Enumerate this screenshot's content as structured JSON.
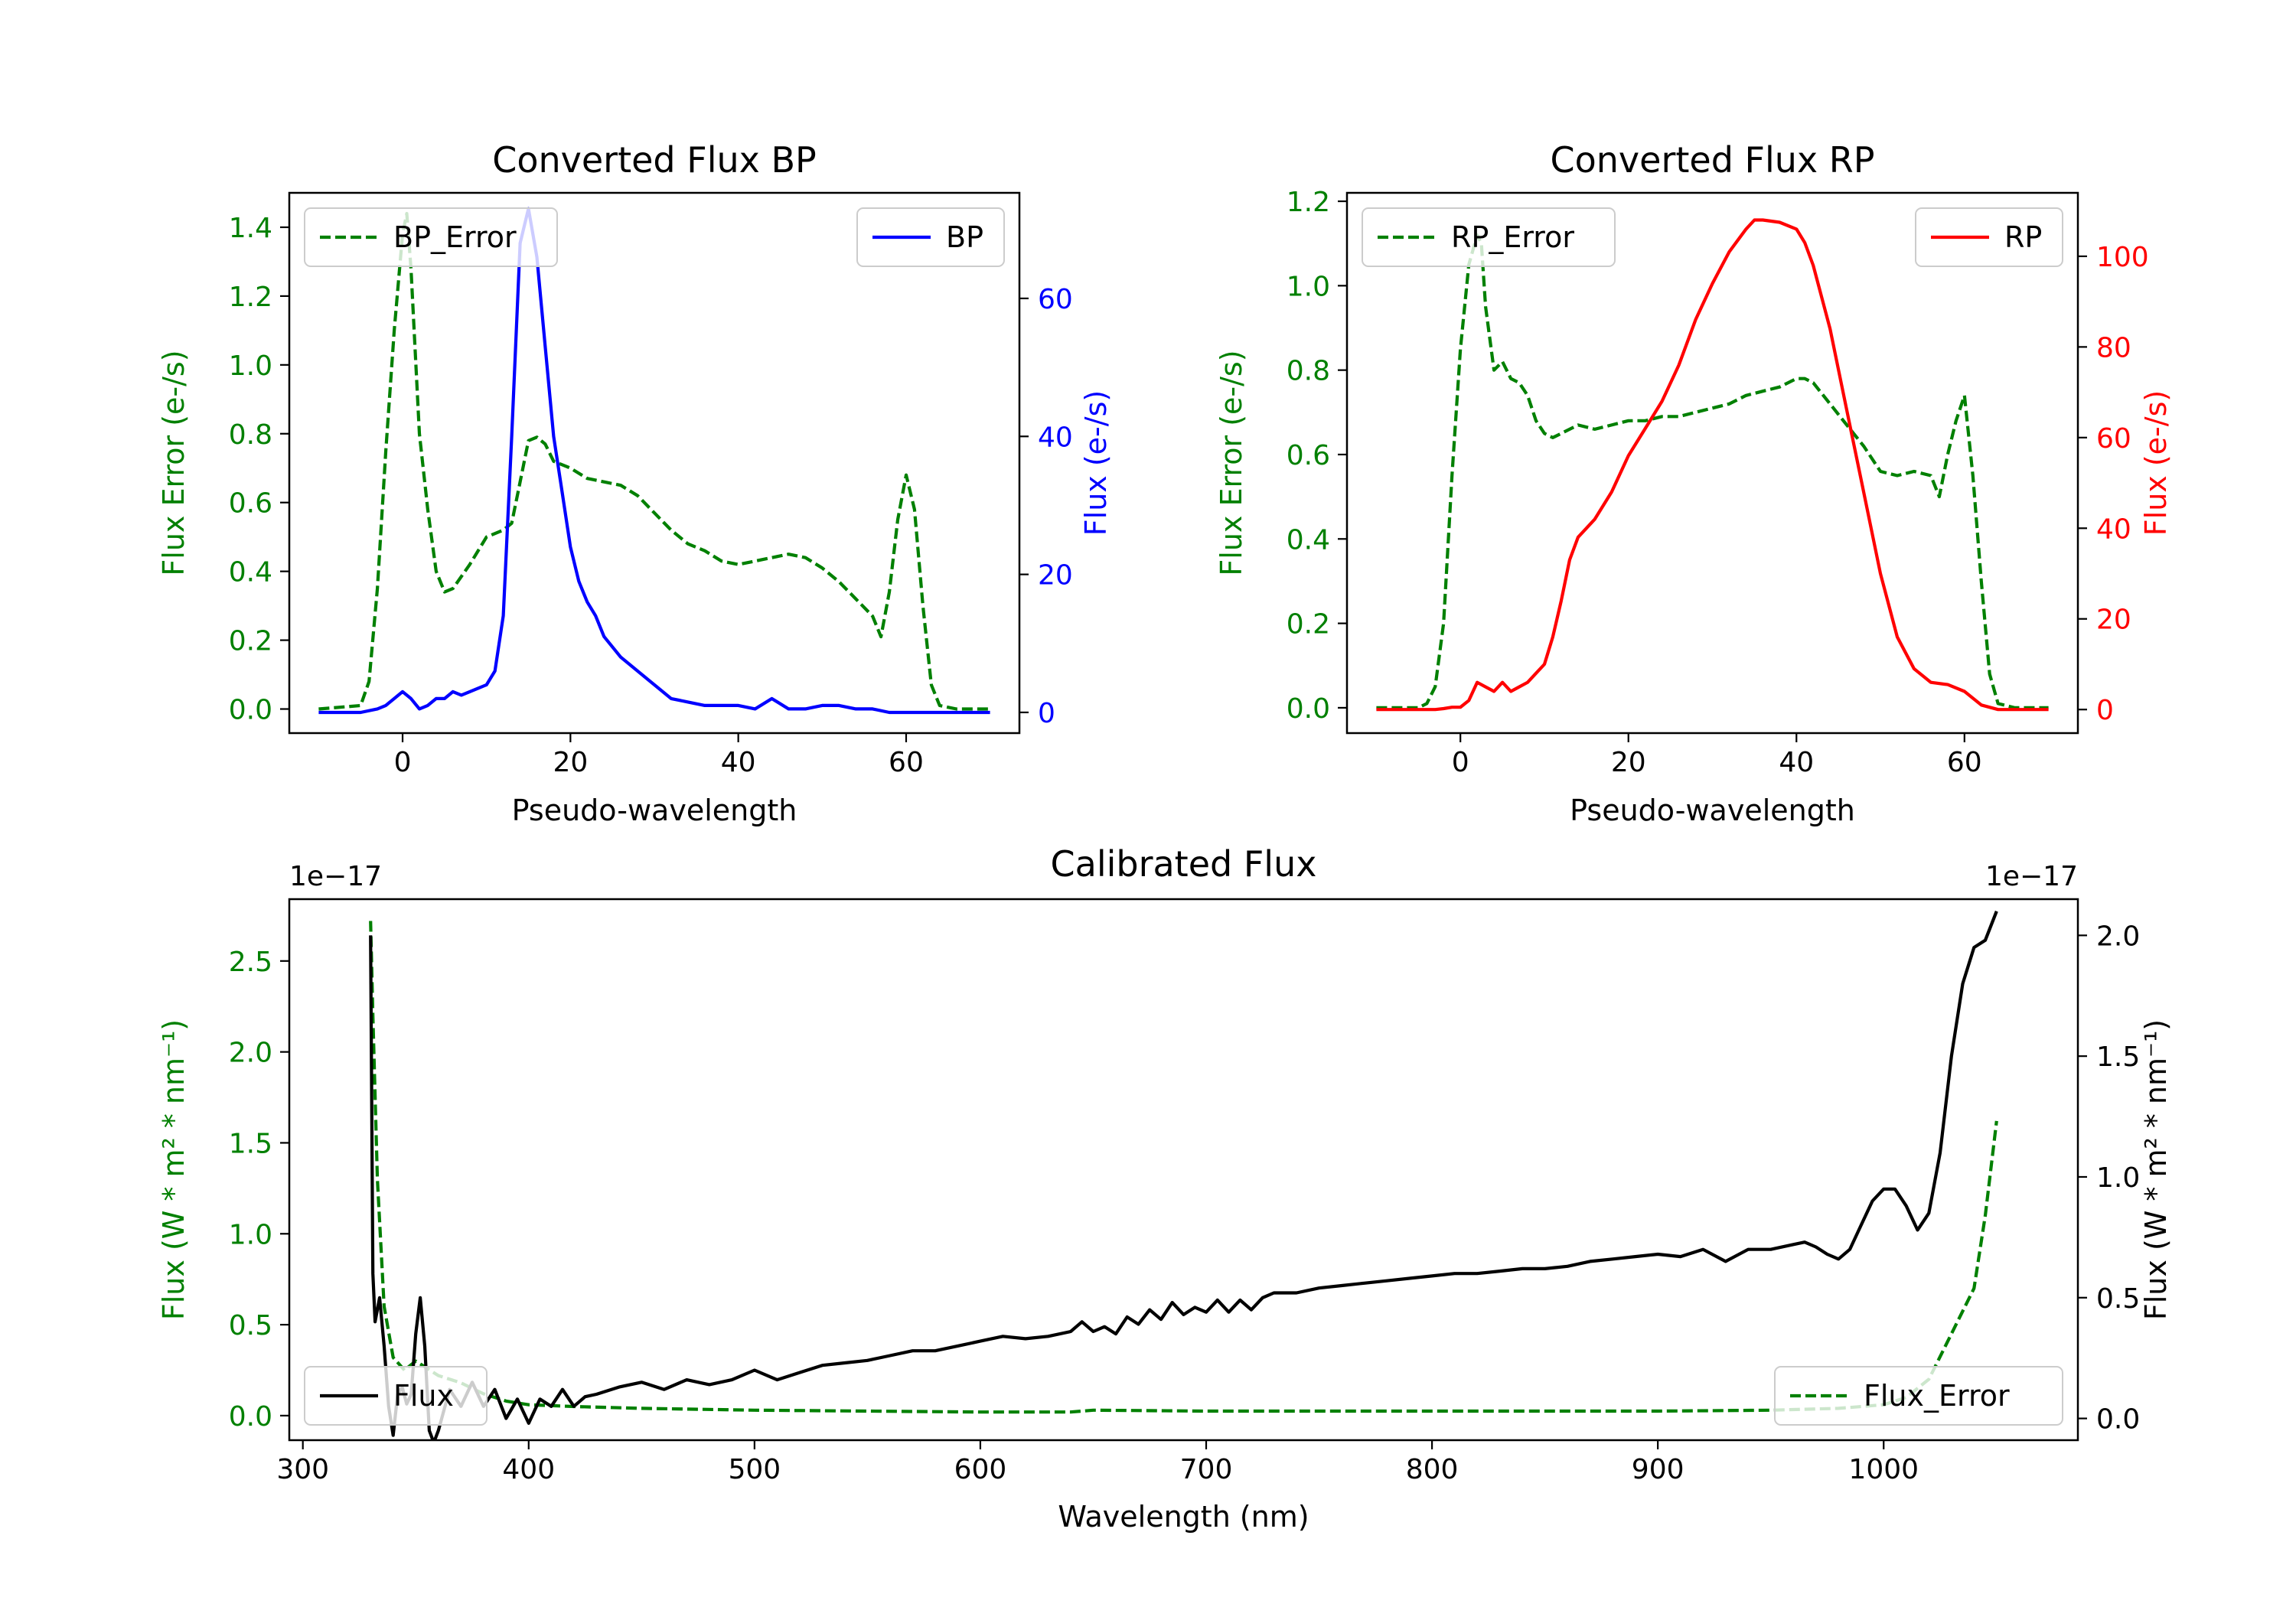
{
  "colors": {
    "green": "#008000",
    "blue": "#0000ff",
    "red": "#ff0000",
    "black": "#000000"
  },
  "chart_data": [
    {
      "id": "bp",
      "type": "line",
      "title": "Converted Flux BP",
      "xlabel": "Pseudo-wavelength",
      "xlim": [
        -13.5,
        73.5
      ],
      "xticks": [
        0,
        20,
        40,
        60
      ],
      "left_axis": {
        "label": "Flux Error (e-/s)",
        "color": "#008000",
        "ylim": [
          -0.07,
          1.5
        ],
        "ticks": [
          0.0,
          0.2,
          0.4,
          0.6,
          0.8,
          1.0,
          1.2,
          1.4
        ],
        "tick_labels": [
          "0.0",
          "0.2",
          "0.4",
          "0.6",
          "0.8",
          "1.0",
          "1.2",
          "1.4"
        ]
      },
      "right_axis": {
        "label": "Flux (e-/s)",
        "color": "#0000ff",
        "ylim": [
          -3.0,
          75.3
        ],
        "ticks": [
          0,
          20,
          40,
          60
        ],
        "tick_labels": [
          "0",
          "20",
          "40",
          "60"
        ]
      },
      "series": [
        {
          "name": "BP_Error",
          "axis": "left",
          "style": "dashed",
          "color": "#008000",
          "legend": "top-left",
          "x": [
            -10,
            -5,
            -4,
            -3,
            -2,
            -1,
            0,
            0.5,
            1,
            2,
            3,
            4,
            5,
            6,
            8,
            10,
            12,
            13,
            14,
            15,
            16,
            17,
            18,
            20,
            22,
            24,
            26,
            28,
            30,
            32,
            34,
            36,
            38,
            40,
            42,
            44,
            46,
            48,
            50,
            52,
            54,
            56,
            57,
            58,
            59,
            60,
            61,
            62,
            63,
            64,
            66,
            68,
            70
          ],
          "y": [
            0.0,
            0.01,
            0.08,
            0.35,
            0.75,
            1.1,
            1.38,
            1.44,
            1.28,
            0.8,
            0.58,
            0.4,
            0.34,
            0.35,
            0.42,
            0.5,
            0.52,
            0.54,
            0.66,
            0.78,
            0.79,
            0.77,
            0.72,
            0.7,
            0.67,
            0.66,
            0.65,
            0.62,
            0.57,
            0.52,
            0.48,
            0.46,
            0.43,
            0.42,
            0.43,
            0.44,
            0.45,
            0.44,
            0.41,
            0.37,
            0.32,
            0.27,
            0.21,
            0.34,
            0.55,
            0.68,
            0.58,
            0.3,
            0.07,
            0.01,
            0.0,
            0.0,
            0.0
          ]
        },
        {
          "name": "BP",
          "axis": "right",
          "style": "solid",
          "color": "#0000ff",
          "legend": "top-right",
          "x": [
            -10,
            -5,
            -3,
            -2,
            -1,
            0,
            1,
            2,
            3,
            4,
            5,
            6,
            7,
            8,
            9,
            10,
            11,
            12,
            13,
            14,
            15,
            16,
            17,
            18,
            19,
            20,
            21,
            22,
            23,
            24,
            26,
            28,
            30,
            32,
            34,
            36,
            38,
            40,
            42,
            44,
            46,
            48,
            50,
            52,
            54,
            56,
            58,
            60,
            62,
            64,
            66,
            68,
            70
          ],
          "y": [
            0,
            0,
            0.5,
            1,
            2,
            3,
            2,
            0.5,
            1,
            2,
            2,
            3,
            2.5,
            3,
            3.5,
            4,
            6,
            14,
            40,
            68,
            73,
            66,
            53,
            40,
            32,
            24,
            19,
            16,
            14,
            11,
            8,
            6,
            4,
            2,
            1.5,
            1,
            1,
            1,
            0.5,
            2,
            0.5,
            0.5,
            1,
            1,
            0.5,
            0.5,
            0,
            0,
            0,
            0,
            0,
            0,
            0
          ]
        }
      ]
    },
    {
      "id": "rp",
      "type": "line",
      "title": "Converted Flux RP",
      "xlabel": "Pseudo-wavelength",
      "xlim": [
        -13.5,
        73.5
      ],
      "xticks": [
        0,
        20,
        40,
        60
      ],
      "left_axis": {
        "label": "Flux Error (e-/s)",
        "color": "#008000",
        "ylim": [
          -0.06,
          1.22
        ],
        "ticks": [
          0.0,
          0.2,
          0.4,
          0.6,
          0.8,
          1.0,
          1.2
        ],
        "tick_labels": [
          "0.0",
          "0.2",
          "0.4",
          "0.6",
          "0.8",
          "1.0",
          "1.2"
        ]
      },
      "right_axis": {
        "label": "Flux (e-/s)",
        "color": "#ff0000",
        "ylim": [
          -5.2,
          114
        ],
        "ticks": [
          0,
          20,
          40,
          60,
          80,
          100
        ],
        "tick_labels": [
          "0",
          "20",
          "40",
          "60",
          "80",
          "100"
        ]
      },
      "series": [
        {
          "name": "RP_Error",
          "axis": "left",
          "style": "dashed",
          "color": "#008000",
          "legend": "top-left",
          "x": [
            -10,
            -5,
            -4,
            -3,
            -2,
            -1,
            0,
            1,
            2,
            2.5,
            3,
            4,
            5,
            6,
            7,
            8,
            9,
            10,
            11,
            12,
            14,
            16,
            18,
            20,
            22,
            24,
            26,
            28,
            30,
            32,
            34,
            36,
            38,
            40,
            41,
            42,
            44,
            46,
            48,
            50,
            52,
            54,
            56,
            57,
            58,
            59,
            60,
            61,
            62,
            63,
            64,
            66,
            68,
            70
          ],
          "y": [
            0.0,
            0.0,
            0.01,
            0.05,
            0.2,
            0.55,
            0.85,
            1.05,
            1.12,
            1.1,
            0.95,
            0.8,
            0.82,
            0.78,
            0.77,
            0.74,
            0.68,
            0.65,
            0.64,
            0.65,
            0.67,
            0.66,
            0.67,
            0.68,
            0.68,
            0.69,
            0.69,
            0.7,
            0.71,
            0.72,
            0.74,
            0.75,
            0.76,
            0.78,
            0.78,
            0.77,
            0.72,
            0.67,
            0.62,
            0.56,
            0.55,
            0.56,
            0.55,
            0.5,
            0.6,
            0.68,
            0.74,
            0.55,
            0.3,
            0.08,
            0.01,
            0.0,
            0.0,
            0.0
          ]
        },
        {
          "name": "RP",
          "axis": "right",
          "style": "solid",
          "color": "#ff0000",
          "legend": "top-right",
          "x": [
            -10,
            -3,
            -2,
            -1,
            0,
            1,
            2,
            3,
            4,
            5,
            6,
            7,
            8,
            9,
            10,
            11,
            12,
            13,
            14,
            15,
            16,
            18,
            20,
            22,
            24,
            26,
            28,
            30,
            32,
            34,
            35,
            36,
            38,
            40,
            41,
            42,
            44,
            46,
            48,
            50,
            52,
            54,
            56,
            58,
            60,
            62,
            64,
            66,
            68,
            70
          ],
          "y": [
            0,
            0,
            0.2,
            0.5,
            0.5,
            2,
            6,
            5,
            4,
            6,
            4,
            5,
            6,
            8,
            10,
            16,
            24,
            33,
            38,
            40,
            42,
            48,
            56,
            62,
            68,
            76,
            86,
            94,
            101,
            106,
            108,
            108,
            107.5,
            106,
            103,
            98,
            84,
            66,
            48,
            30,
            16,
            9,
            6,
            5.5,
            4,
            1,
            0,
            0,
            0,
            0
          ]
        }
      ]
    },
    {
      "id": "calibrated",
      "type": "line",
      "title": "Calibrated Flux",
      "xlabel": "Wavelength (nm)",
      "xlim": [
        294,
        1086
      ],
      "xticks": [
        300,
        400,
        500,
        600,
        700,
        800,
        900,
        1000
      ],
      "left_axis": {
        "label": "Flux (W * m² * nm⁻¹)",
        "color": "#008000",
        "scale_note": "1e−17",
        "ylim": [
          -0.135,
          2.84
        ],
        "ticks": [
          0.0,
          0.5,
          1.0,
          1.5,
          2.0,
          2.5
        ],
        "tick_labels": [
          "0.0",
          "0.5",
          "1.0",
          "1.5",
          "2.0",
          "2.5"
        ]
      },
      "right_axis": {
        "label": "Flux (W * m² * nm⁻¹)",
        "color": "#000000",
        "scale_note": "1e−17",
        "ylim": [
          -0.09,
          2.15
        ],
        "ticks": [
          0.0,
          0.5,
          1.0,
          1.5,
          2.0
        ],
        "tick_labels": [
          "0.0",
          "0.5",
          "1.0",
          "1.5",
          "2.0"
        ]
      },
      "series": [
        {
          "name": "Flux_Error",
          "axis": "left",
          "style": "dashed",
          "color": "#008000",
          "legend": "bottom-right",
          "x": [
            330,
            331,
            333,
            336,
            340,
            345,
            350,
            360,
            370,
            380,
            390,
            400,
            420,
            450,
            500,
            550,
            600,
            640,
            650,
            700,
            750,
            800,
            850,
            900,
            950,
            980,
            1000,
            1010,
            1020,
            1030,
            1040,
            1045,
            1050
          ],
          "y": [
            2.72,
            2.2,
            1.3,
            0.6,
            0.32,
            0.25,
            0.3,
            0.22,
            0.18,
            0.12,
            0.08,
            0.06,
            0.05,
            0.04,
            0.03,
            0.025,
            0.02,
            0.02,
            0.03,
            0.025,
            0.025,
            0.025,
            0.025,
            0.025,
            0.03,
            0.04,
            0.06,
            0.1,
            0.2,
            0.45,
            0.7,
            1.1,
            1.62
          ]
        },
        {
          "name": "Flux",
          "axis": "right",
          "style": "solid",
          "color": "#000000",
          "legend": "bottom-left",
          "x": [
            330,
            331,
            332,
            334,
            336,
            338,
            340,
            342,
            344,
            346,
            348,
            350,
            352,
            354,
            356,
            358,
            360,
            365,
            370,
            375,
            380,
            385,
            390,
            395,
            400,
            405,
            410,
            415,
            420,
            425,
            430,
            440,
            450,
            460,
            470,
            480,
            490,
            500,
            510,
            520,
            530,
            540,
            550,
            560,
            570,
            580,
            590,
            600,
            610,
            620,
            630,
            640,
            645,
            650,
            655,
            660,
            665,
            670,
            675,
            680,
            685,
            690,
            695,
            700,
            705,
            710,
            715,
            720,
            725,
            730,
            740,
            750,
            760,
            770,
            780,
            790,
            800,
            810,
            820,
            830,
            840,
            850,
            860,
            870,
            880,
            890,
            900,
            910,
            920,
            930,
            940,
            950,
            960,
            965,
            970,
            975,
            980,
            985,
            990,
            995,
            1000,
            1005,
            1010,
            1015,
            1020,
            1025,
            1030,
            1035,
            1040,
            1045,
            1050
          ],
          "y": [
            2.0,
            0.6,
            0.4,
            0.5,
            0.3,
            0.05,
            -0.07,
            0.1,
            0.13,
            0.06,
            0.1,
            0.35,
            0.5,
            0.3,
            -0.05,
            -0.1,
            -0.05,
            0.12,
            0.05,
            0.15,
            0.05,
            0.12,
            0.0,
            0.08,
            -0.02,
            0.08,
            0.05,
            0.12,
            0.05,
            0.09,
            0.1,
            0.13,
            0.15,
            0.12,
            0.16,
            0.14,
            0.16,
            0.2,
            0.16,
            0.19,
            0.22,
            0.23,
            0.24,
            0.26,
            0.28,
            0.28,
            0.3,
            0.32,
            0.34,
            0.33,
            0.34,
            0.36,
            0.4,
            0.36,
            0.38,
            0.35,
            0.42,
            0.39,
            0.45,
            0.41,
            0.48,
            0.43,
            0.46,
            0.44,
            0.49,
            0.44,
            0.49,
            0.45,
            0.5,
            0.52,
            0.52,
            0.54,
            0.55,
            0.56,
            0.57,
            0.58,
            0.59,
            0.6,
            0.6,
            0.61,
            0.62,
            0.62,
            0.63,
            0.65,
            0.66,
            0.67,
            0.68,
            0.67,
            0.7,
            0.65,
            0.7,
            0.7,
            0.72,
            0.73,
            0.71,
            0.68,
            0.66,
            0.7,
            0.8,
            0.9,
            0.95,
            0.95,
            0.88,
            0.78,
            0.85,
            1.1,
            1.5,
            1.8,
            1.95,
            1.98,
            2.1
          ]
        }
      ]
    }
  ]
}
